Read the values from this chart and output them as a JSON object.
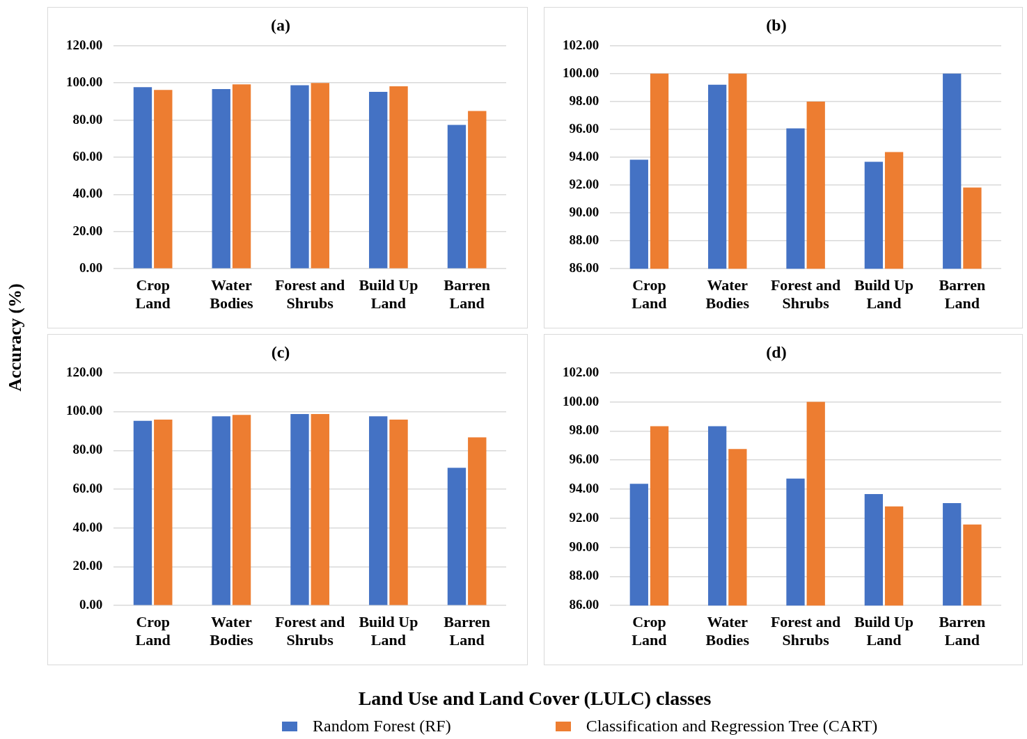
{
  "chart_data": [
    {
      "type": "bar",
      "title": "(a)",
      "ylabel": "Accuracy (%)",
      "xlabel": "Land Use and Land Cover (LULC) classes",
      "legend": "bottom",
      "grid": "y",
      "categories": [
        "Crop Land",
        "Water Bodies",
        "Forest and Shrubs",
        "Build Up Land",
        "Barren Land"
      ],
      "ylim": [
        0,
        120
      ],
      "yticks": [
        {
          "value": 0,
          "label": "0.00"
        },
        {
          "value": 20,
          "label": "20.00"
        },
        {
          "value": 40,
          "label": "40.00"
        },
        {
          "value": 60,
          "label": "60.00"
        },
        {
          "value": 80,
          "label": "80.00"
        },
        {
          "value": 100,
          "label": "100.00"
        },
        {
          "value": 120,
          "label": "120.00"
        }
      ],
      "series": [
        {
          "name": "Random Forest (RF)",
          "color": "#4472c4",
          "values": [
            97.7,
            96.7,
            98.8,
            95.2,
            77.4
          ]
        },
        {
          "name": "Classification and Regression Tree (CART)",
          "color": "#ed7d31",
          "values": [
            96.2,
            99.2,
            100,
            98.2,
            84.9
          ]
        }
      ]
    },
    {
      "type": "bar",
      "title": "(b)",
      "grid": "y",
      "categories": [
        "Crop Land",
        "Water Bodies",
        "Forest and Shrubs",
        "Build Up Land",
        "Barren Land"
      ],
      "ylim": [
        86,
        102
      ],
      "yticks": [
        {
          "value": 86,
          "label": "86.00"
        },
        {
          "value": 88,
          "label": "88.00"
        },
        {
          "value": 90,
          "label": "90.00"
        },
        {
          "value": 92,
          "label": "92.00"
        },
        {
          "value": 94,
          "label": "94.00"
        },
        {
          "value": 96,
          "label": "96.00"
        },
        {
          "value": 98,
          "label": "98.00"
        },
        {
          "value": 100,
          "label": "100.00"
        },
        {
          "value": 102,
          "label": "102.00"
        }
      ],
      "series": [
        {
          "color": "#4472c4",
          "values": [
            93.83,
            99.2,
            96.07,
            93.67,
            100
          ]
        },
        {
          "color": "#ed7d31",
          "values": [
            100,
            100,
            98.0,
            94.37,
            91.83
          ]
        }
      ]
    },
    {
      "type": "bar",
      "title": "(c)",
      "grid": "y",
      "categories": [
        "Crop Land",
        "Water Bodies",
        "Forest and Shrubs",
        "Build Up Land",
        "Barren Land"
      ],
      "ylim": [
        0,
        120
      ],
      "yticks": [
        {
          "value": 0,
          "label": "0.00"
        },
        {
          "value": 20,
          "label": "20.00"
        },
        {
          "value": 40,
          "label": "40.00"
        },
        {
          "value": 60,
          "label": "60.00"
        },
        {
          "value": 80,
          "label": "80.00"
        },
        {
          "value": 100,
          "label": "100.00"
        },
        {
          "value": 120,
          "label": "120.00"
        }
      ],
      "series": [
        {
          "color": "#4472c4",
          "values": [
            95.3,
            97.6,
            98.8,
            97.6,
            71.0
          ]
        },
        {
          "color": "#ed7d31",
          "values": [
            95.9,
            98.3,
            98.8,
            95.9,
            86.7
          ]
        }
      ]
    },
    {
      "type": "bar",
      "title": "(d)",
      "grid": "y",
      "categories": [
        "Crop Land",
        "Water Bodies",
        "Forest and Shrubs",
        "Build Up Land",
        "Barren Land"
      ],
      "ylim": [
        86,
        102
      ],
      "yticks": [
        {
          "value": 86,
          "label": "86.00"
        },
        {
          "value": 88,
          "label": "88.00"
        },
        {
          "value": 90,
          "label": "90.00"
        },
        {
          "value": 92,
          "label": "92.00"
        },
        {
          "value": 94,
          "label": "94.00"
        },
        {
          "value": 96,
          "label": "96.00"
        },
        {
          "value": 98,
          "label": "98.00"
        },
        {
          "value": 100,
          "label": "100.00"
        },
        {
          "value": 102,
          "label": "102.00"
        }
      ],
      "series": [
        {
          "color": "#4472c4",
          "values": [
            94.37,
            98.33,
            94.73,
            93.67,
            93.04
          ]
        },
        {
          "color": "#ed7d31",
          "values": [
            98.33,
            96.76,
            100,
            92.82,
            91.57
          ]
        }
      ]
    }
  ]
}
